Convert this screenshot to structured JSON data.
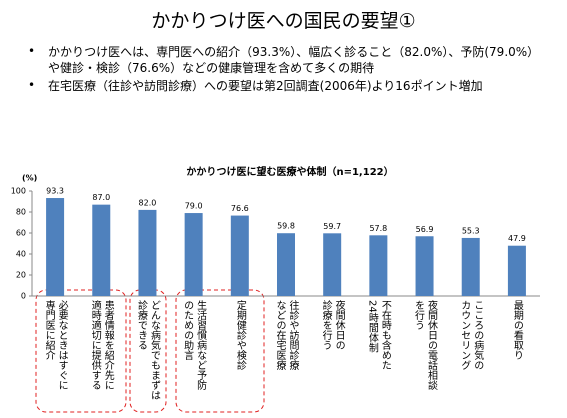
{
  "slide_title": "かかりつけ医への国民の要望①",
  "bullets": [
    "かかりつけ医へは、専門医への紹介（93.3%）、幅広く診ること（82.0%）、予防(79.0%）や健診・検診（76.6%）などの健康管理を含めて多くの期待",
    "在宅医療（往診や訪問診療）への要望は第2回調査(2006年)より16ポイント増加"
  ],
  "chart_data": {
    "type": "bar",
    "title": "かかりつけ医に望む医療や体制（n=1,122）",
    "y_label": "(%)",
    "categories": [
      "必要なときはすぐに\n専門医に紹介",
      "患者情報を紹介先に\n適時適切に提供する",
      "どんな病気でもまずは\n診療できる",
      "生活習慣病など予防\nのための助言",
      "定期健診や検診",
      "往診や訪問診療\nなどの在宅医療",
      "夜間休日の\n診療を行う",
      "不在時も含めた\n24時間体制",
      "夜間休日の電話相談\nを行う",
      "こころの病気の\nカウンセリング",
      "最期の看取り"
    ],
    "values": [
      93.3,
      87.0,
      82.0,
      79.0,
      76.6,
      59.8,
      59.7,
      57.8,
      56.9,
      55.3,
      47.9
    ],
    "value_labels": [
      "93.3",
      "87.0",
      "82.0",
      "79.0",
      "76.6",
      "59.8",
      "59.7",
      "57.8",
      "56.9",
      "55.3",
      "47.9"
    ],
    "color": "#4f81bd",
    "ylim": [
      0,
      100
    ],
    "yticks": [
      0,
      20,
      40,
      60,
      80,
      100
    ]
  }
}
